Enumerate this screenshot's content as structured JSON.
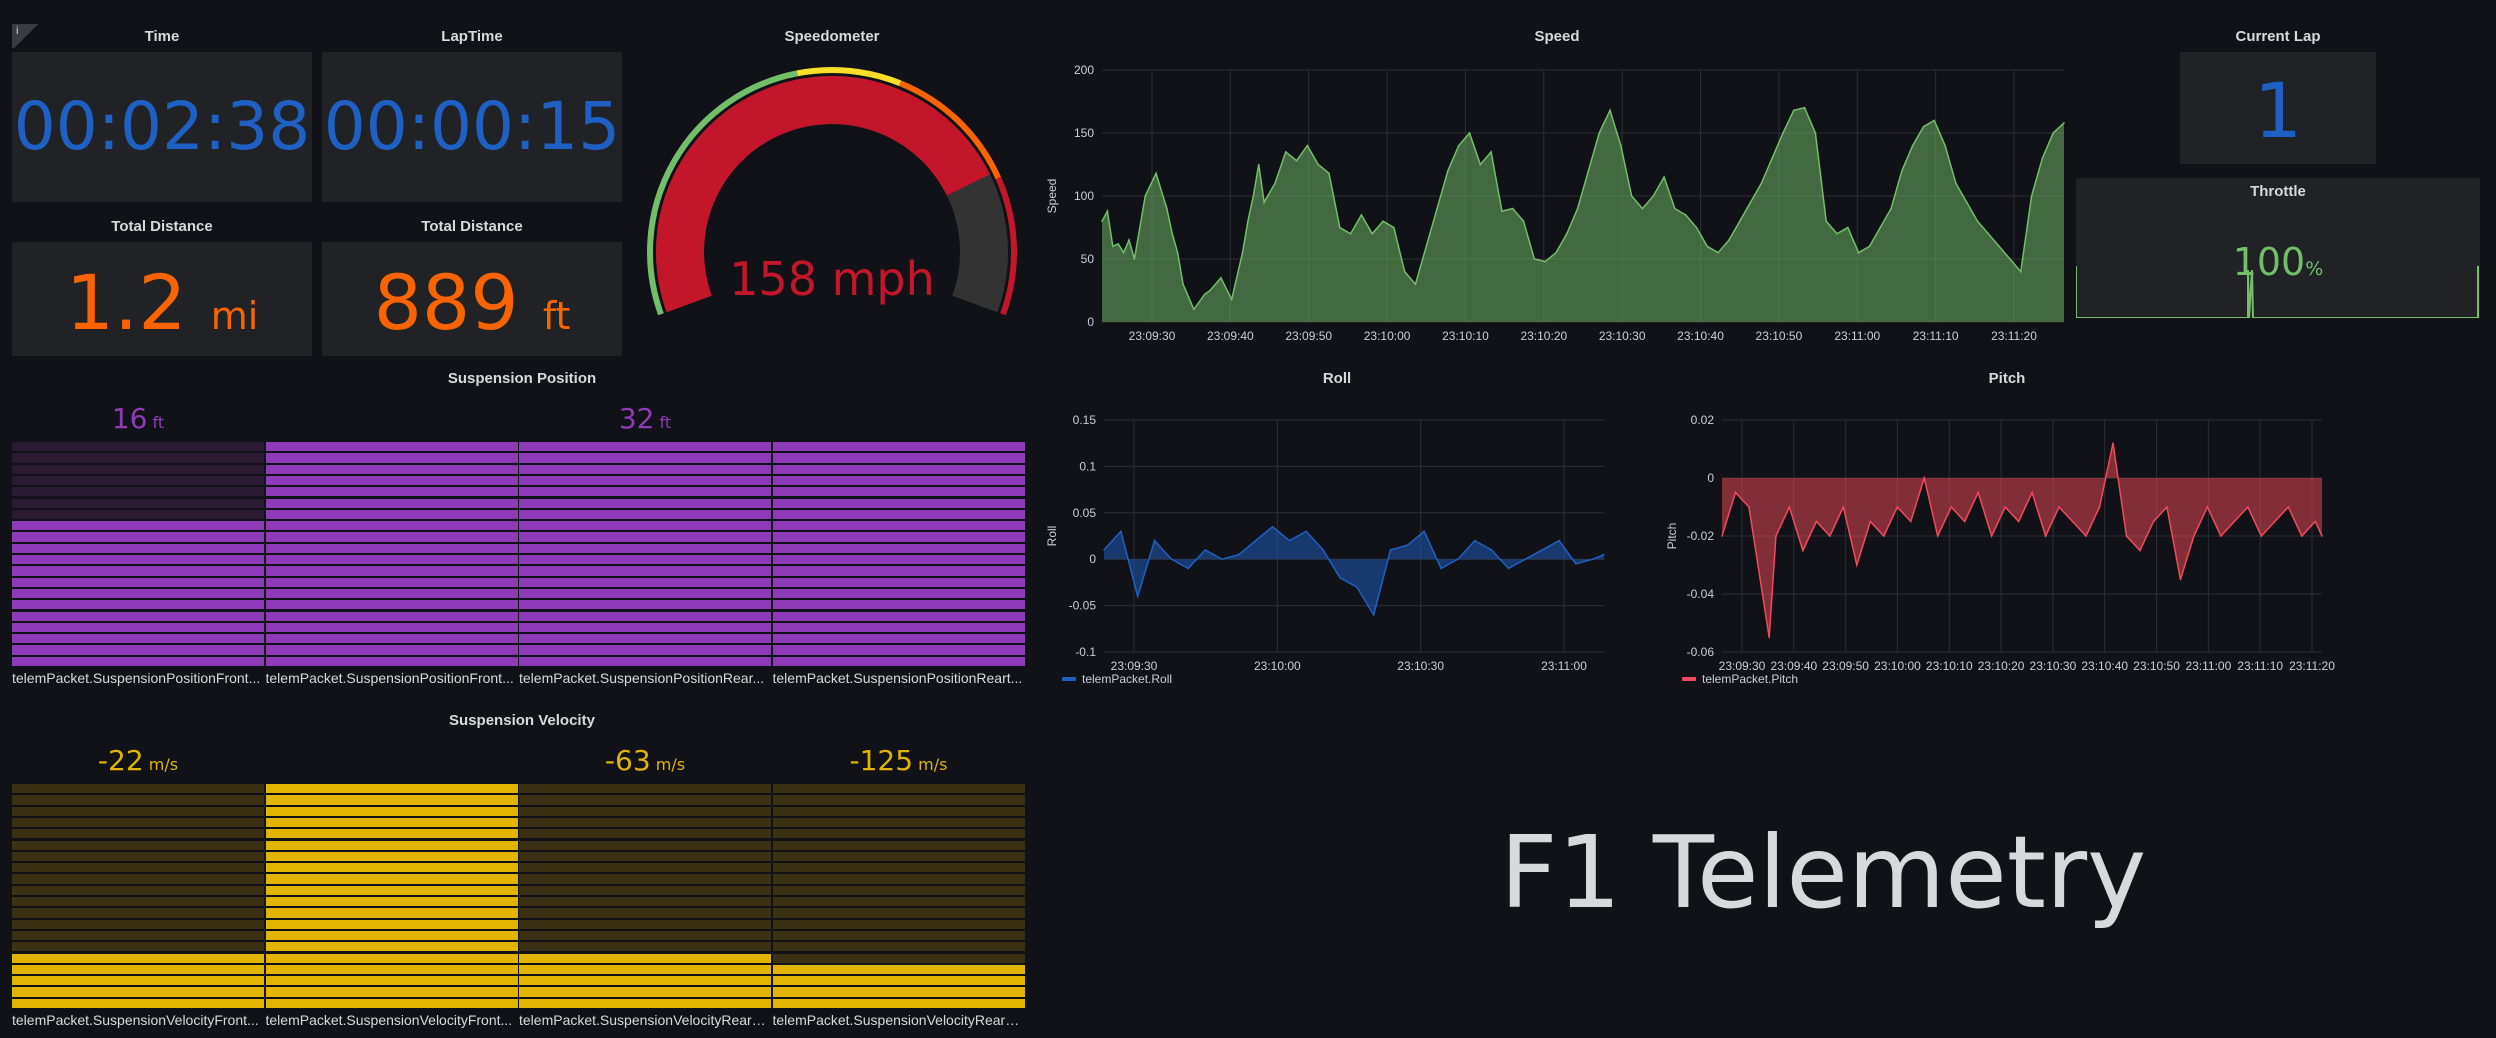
{
  "colors": {
    "blue": "#1f60c4",
    "orange": "#fa6400",
    "red": "#c4162a",
    "green": "#73bf69",
    "purple": "#8f3bb8",
    "yellow": "#e0b400",
    "pink": "#f2495c"
  },
  "time": {
    "title": "Time",
    "value": "00:02:38"
  },
  "laptime": {
    "title": "LapTime",
    "value": "00:00:15"
  },
  "dist_mi": {
    "title": "Total Distance",
    "value": "1.2",
    "unit": "mi"
  },
  "dist_ft": {
    "title": "Total Distance",
    "value": "889",
    "unit": "ft"
  },
  "speedometer": {
    "title": "Speedometer",
    "value": "158 mph",
    "level": 0.79
  },
  "current_lap": {
    "title": "Current Lap",
    "value": "1"
  },
  "throttle": {
    "title": "Throttle",
    "value": "100",
    "unit": "%"
  },
  "f1_title": "F1 Telemetry",
  "info_icon": "i",
  "suspension_position": {
    "title": "Suspension Position",
    "unit": "ft",
    "items": [
      {
        "label": "telemPacket.SuspensionPositionFront...",
        "value": "16",
        "fill": 0.63
      },
      {
        "label": "telemPacket.SuspensionPositionFront...",
        "value": "",
        "fill": 1.0
      },
      {
        "label": "telemPacket.SuspensionPositionRear...",
        "value": "32",
        "fill": 1.0
      },
      {
        "label": "telemPacket.SuspensionPositionReart...",
        "value": "",
        "fill": 1.0
      }
    ]
  },
  "suspension_velocity": {
    "title": "Suspension Velocity",
    "unit": "m/s",
    "items": [
      {
        "label": "telemPacket.SuspensionVelocityFront...",
        "value": "-22",
        "fill": 0.25
      },
      {
        "label": "telemPacket.SuspensionVelocityFront...",
        "value": "",
        "fill": 1.0
      },
      {
        "label": "telemPacket.SuspensionVelocityRearL...",
        "value": "-63",
        "fill": 0.25
      },
      {
        "label": "telemPacket.SuspensionVelocityRearR...",
        "value": "-125",
        "fill": 0.2
      }
    ]
  },
  "chart_data": [
    {
      "type": "area",
      "title": "Speed",
      "ylabel": "Speed",
      "xlabel": "",
      "ylim": [
        0,
        200
      ],
      "yticks": [
        0,
        50,
        100,
        150,
        200
      ],
      "xticks": [
        "23:09:30",
        "23:09:40",
        "23:09:50",
        "23:10:00",
        "23:10:10",
        "23:10:20",
        "23:10:30",
        "23:10:40",
        "23:10:50",
        "23:11:00",
        "23:11:10",
        "23:11:20"
      ],
      "x_seconds": [
        0,
        1,
        2,
        3,
        4,
        5,
        6,
        8,
        10,
        12,
        13,
        14,
        15,
        17,
        19,
        20,
        22,
        24,
        26,
        27,
        28,
        29,
        30,
        32,
        34,
        36,
        38,
        40,
        42,
        44,
        46,
        48,
        50,
        52,
        54,
        56,
        58,
        60,
        62,
        64,
        66,
        68,
        70,
        72,
        74,
        76,
        78,
        80,
        82,
        84,
        86,
        88,
        90,
        92,
        94,
        96,
        98,
        100,
        102,
        104,
        106,
        108,
        110,
        112,
        114,
        116,
        118,
        120,
        122,
        124,
        126,
        128,
        130,
        132,
        134,
        136,
        138,
        140,
        142,
        144,
        146,
        148,
        150,
        152,
        154,
        156,
        158,
        160,
        162,
        164,
        166,
        168,
        170,
        172,
        174,
        176,
        178
      ],
      "values": [
        80,
        88,
        60,
        62,
        55,
        65,
        50,
        100,
        118,
        90,
        70,
        55,
        30,
        10,
        22,
        25,
        35,
        18,
        55,
        80,
        100,
        125,
        95,
        110,
        135,
        128,
        140,
        125,
        118,
        75,
        70,
        85,
        70,
        80,
        75,
        40,
        30,
        60,
        90,
        120,
        140,
        150,
        125,
        135,
        88,
        90,
        80,
        50,
        48,
        55,
        70,
        90,
        120,
        150,
        168,
        140,
        100,
        90,
        100,
        115,
        90,
        85,
        75,
        60,
        55,
        65,
        80,
        95,
        110,
        130,
        150,
        168,
        170,
        150,
        80,
        70,
        75,
        55,
        60,
        75,
        90,
        120,
        140,
        155,
        160,
        140,
        110,
        95,
        80,
        70,
        60,
        50,
        40,
        100,
        130,
        150,
        158
      ],
      "series": [
        {
          "name": "",
          "color": "#73bf69"
        }
      ]
    },
    {
      "type": "area",
      "title": "Roll",
      "ylabel": "Roll",
      "xlabel": "",
      "ylim": [
        -0.1,
        0.15
      ],
      "yticks": [
        -0.1,
        -0.05,
        0,
        0.05,
        0.1,
        0.15
      ],
      "xticks": [
        "23:09:30",
        "23:10:00",
        "23:10:30",
        "23:11:00"
      ],
      "x_seconds": [
        0,
        6,
        12,
        18,
        24,
        30,
        36,
        42,
        48,
        54,
        60,
        66,
        72,
        78,
        84,
        90,
        96,
        102,
        108,
        114,
        120,
        126,
        132,
        138,
        144,
        150,
        156,
        162,
        168,
        174,
        178
      ],
      "values": [
        0.01,
        0.03,
        -0.04,
        0.02,
        0.0,
        -0.01,
        0.01,
        0.0,
        0.005,
        0.02,
        0.035,
        0.02,
        0.03,
        0.01,
        -0.02,
        -0.03,
        -0.06,
        0.01,
        0.015,
        0.03,
        -0.01,
        0.0,
        0.02,
        0.01,
        -0.01,
        0.0,
        0.01,
        0.02,
        -0.005,
        0.0,
        0.005
      ],
      "series": [
        {
          "name": "telemPacket.Roll",
          "color": "#1f60c4"
        }
      ]
    },
    {
      "type": "area",
      "title": "Pitch",
      "ylabel": "Pitch",
      "xlabel": "",
      "ylim": [
        -0.06,
        0.02
      ],
      "yticks": [
        -0.06,
        -0.04,
        -0.02,
        0,
        0.02
      ],
      "xticks": [
        "23:09:30",
        "23:09:40",
        "23:09:50",
        "23:10:00",
        "23:10:10",
        "23:10:20",
        "23:10:30",
        "23:10:40",
        "23:10:50",
        "23:11:00",
        "23:11:10",
        "23:11:20"
      ],
      "x_seconds": [
        0,
        4,
        8,
        12,
        14,
        16,
        20,
        24,
        28,
        32,
        36,
        40,
        44,
        48,
        52,
        56,
        60,
        64,
        68,
        72,
        76,
        80,
        84,
        88,
        92,
        96,
        100,
        104,
        108,
        112,
        116,
        120,
        124,
        128,
        132,
        136,
        140,
        144,
        148,
        152,
        156,
        160,
        164,
        168,
        172,
        176,
        178
      ],
      "values": [
        -0.02,
        -0.005,
        -0.01,
        -0.04,
        -0.055,
        -0.02,
        -0.01,
        -0.025,
        -0.015,
        -0.02,
        -0.01,
        -0.03,
        -0.015,
        -0.02,
        -0.01,
        -0.015,
        0.0,
        -0.02,
        -0.01,
        -0.015,
        -0.005,
        -0.02,
        -0.01,
        -0.015,
        -0.005,
        -0.02,
        -0.01,
        -0.015,
        -0.02,
        -0.01,
        0.012,
        -0.02,
        -0.025,
        -0.015,
        -0.01,
        -0.035,
        -0.02,
        -0.01,
        -0.02,
        -0.015,
        -0.01,
        -0.02,
        -0.015,
        -0.01,
        -0.02,
        -0.015,
        -0.02
      ],
      "series": [
        {
          "name": "telemPacket.Pitch",
          "color": "#f2495c"
        }
      ]
    }
  ]
}
